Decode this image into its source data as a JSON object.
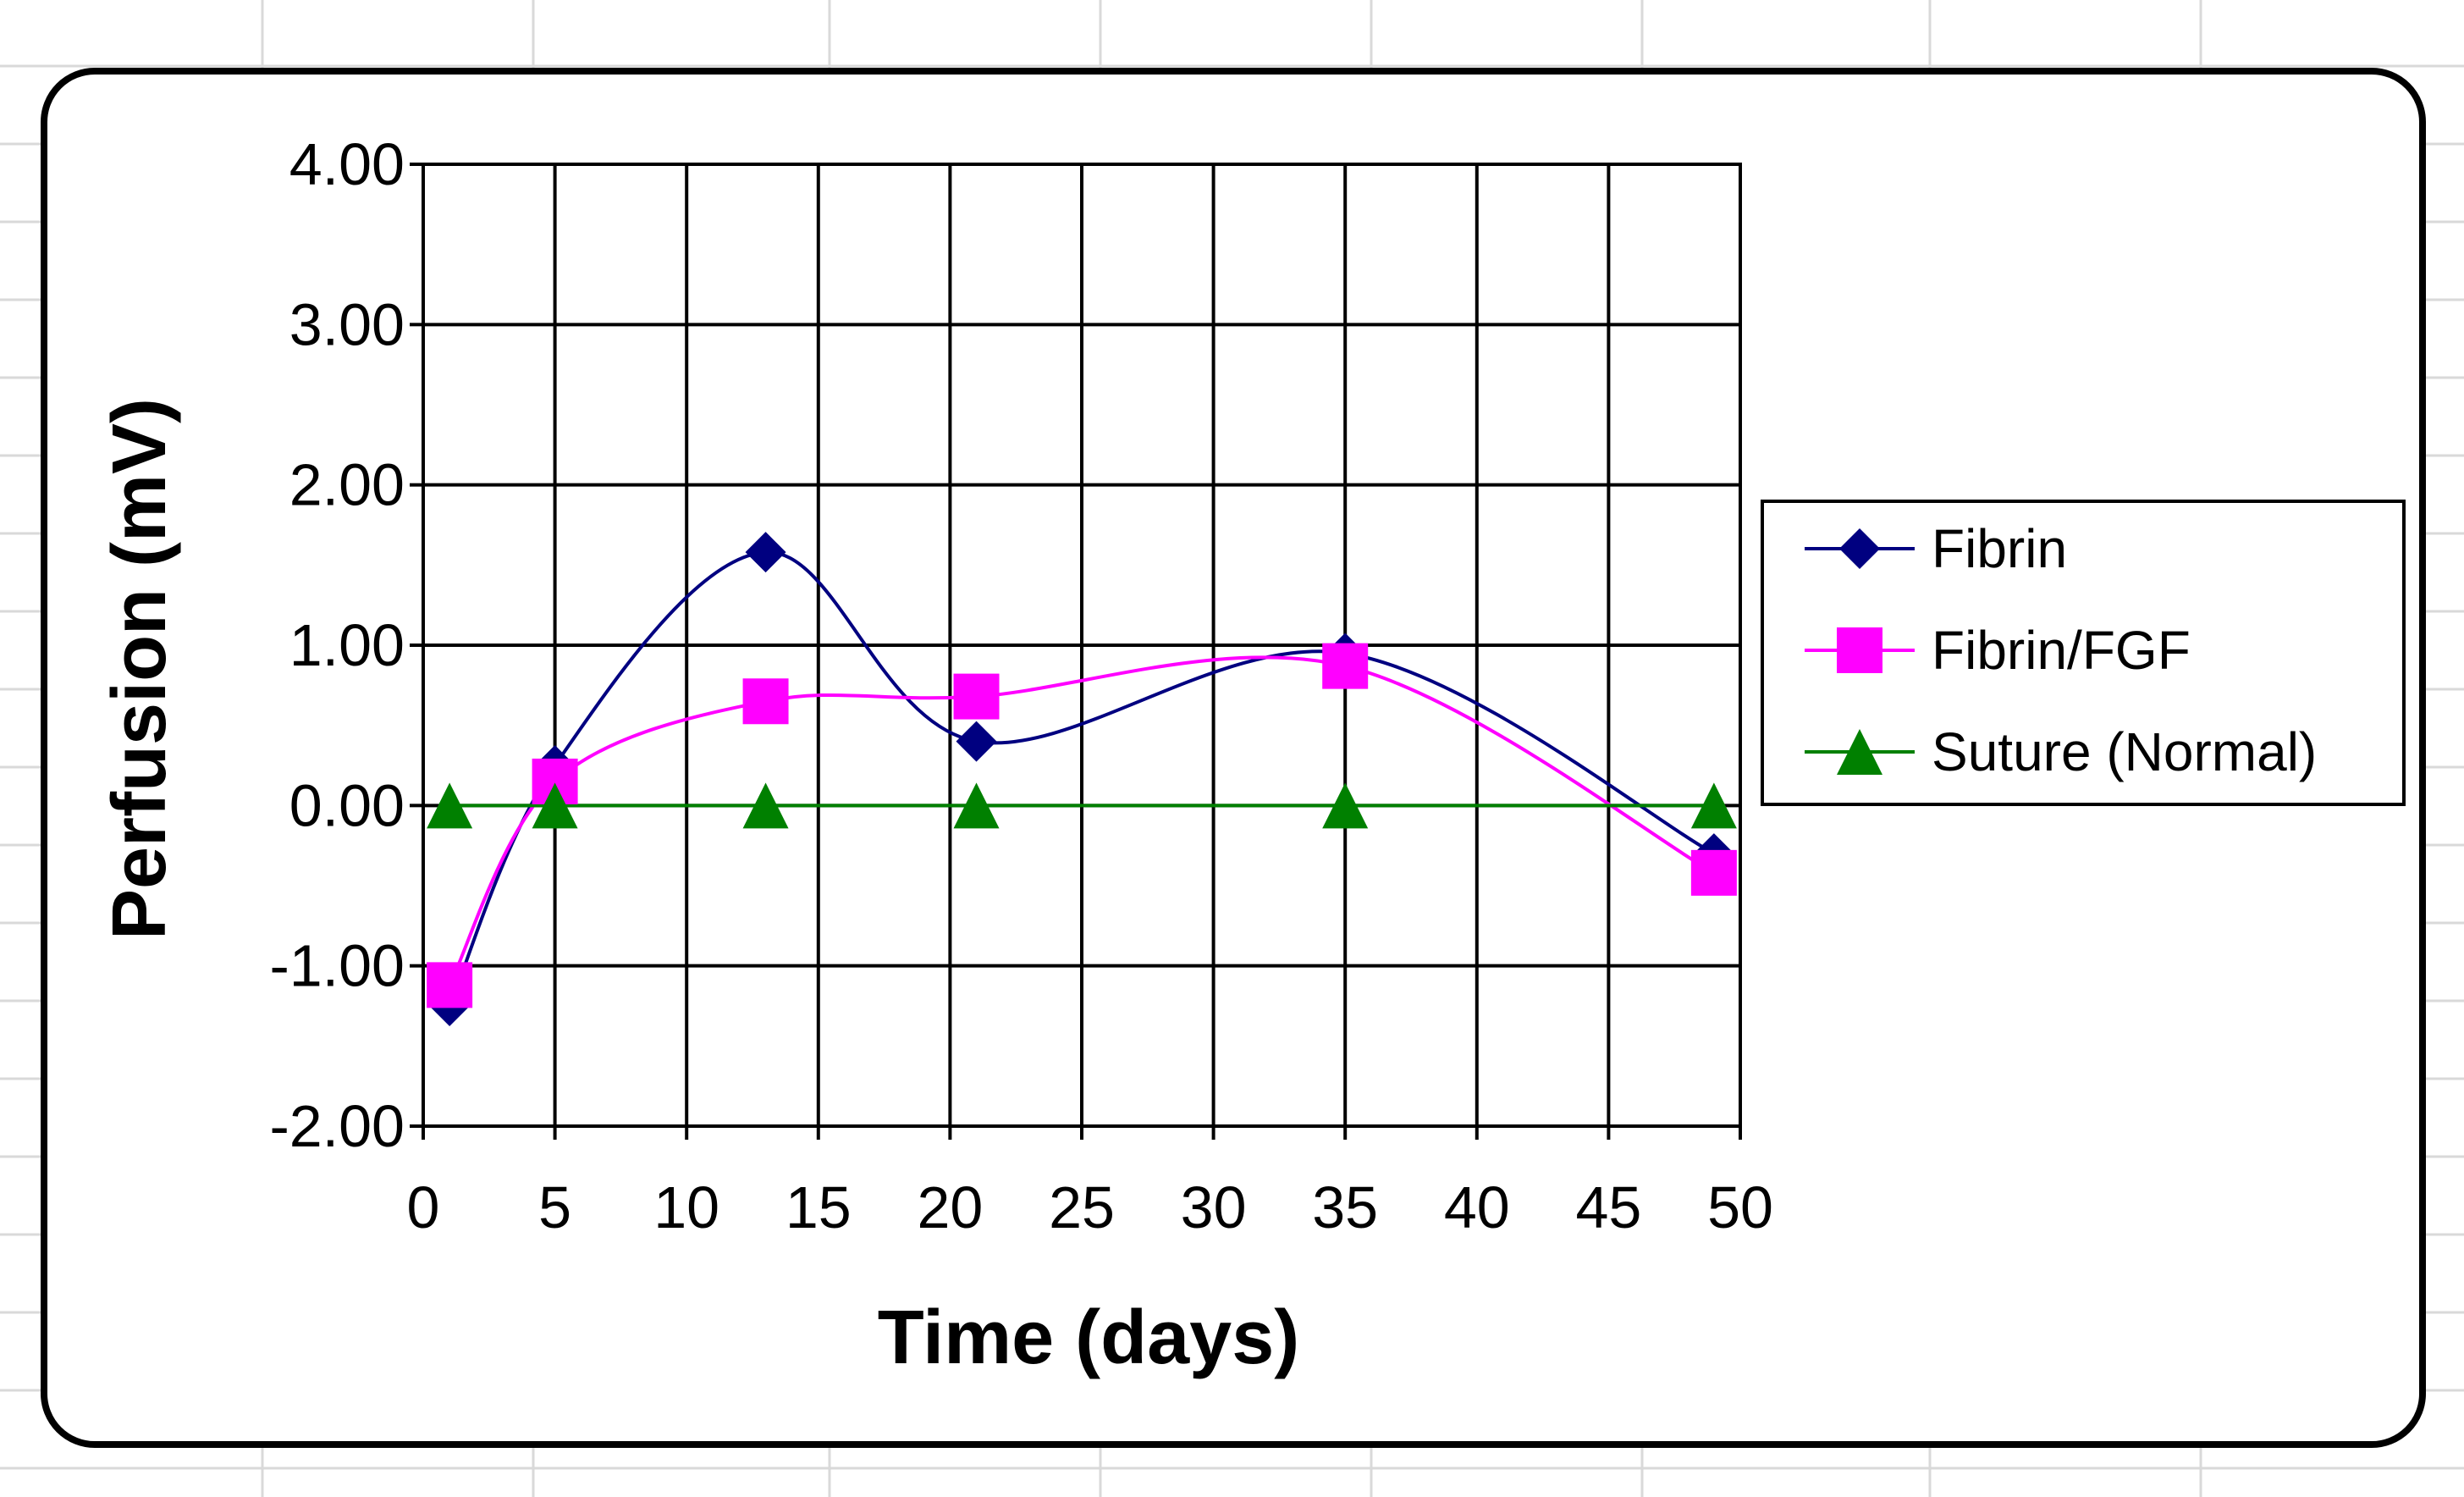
{
  "chart_data": {
    "type": "line",
    "xlabel": "Time (days)",
    "ylabel": "Perfusion (mV)",
    "xlim": [
      0,
      50
    ],
    "ylim": [
      -2,
      4
    ],
    "x_ticks": [
      "0",
      "5",
      "10",
      "15",
      "20",
      "25",
      "30",
      "35",
      "40",
      "45",
      "50"
    ],
    "y_ticks": [
      "4.00",
      "3.00",
      "2.00",
      "1.00",
      "0.00",
      "-1.00",
      "-2.00"
    ],
    "grid": true,
    "smoothed": true,
    "legend_position": "right",
    "series": [
      {
        "name": "Fibrin",
        "color": "#000080",
        "marker": "diamond",
        "x": [
          1,
          5,
          13,
          21,
          35,
          49
        ],
        "y": [
          -1.25,
          0.25,
          1.58,
          0.4,
          0.95,
          -0.3
        ]
      },
      {
        "name": "Fibrin/FGF",
        "color": "#ff00ff",
        "marker": "square",
        "x": [
          1,
          5,
          13,
          21,
          35,
          49
        ],
        "y": [
          -1.12,
          0.15,
          0.65,
          0.68,
          0.87,
          -0.42
        ]
      },
      {
        "name": "Suture (Normal)",
        "color": "#008000",
        "marker": "triangle",
        "x": [
          1,
          5,
          13,
          21,
          35,
          49
        ],
        "y": [
          0,
          0,
          0,
          0,
          0,
          0
        ]
      }
    ]
  }
}
